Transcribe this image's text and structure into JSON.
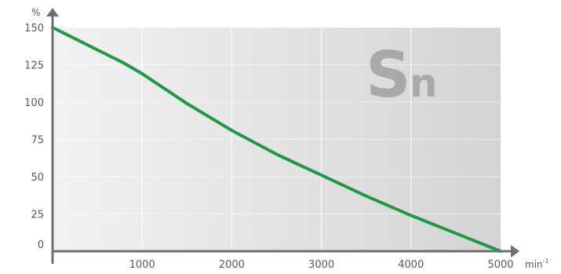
{
  "chart_data": {
    "type": "line",
    "title": "",
    "xlabel": "min",
    "xlabel_superscript": "-1",
    "ylabel": "%",
    "xlim": [
      0,
      5000
    ],
    "ylim": [
      0,
      150
    ],
    "x_ticks": [
      1000,
      2000,
      3000,
      4000,
      5000
    ],
    "y_ticks": [
      0,
      25,
      50,
      75,
      100,
      125,
      150
    ],
    "grid": true,
    "legend": "none",
    "watermark": {
      "main": "S",
      "sub": "n"
    },
    "colors": {
      "line": "#1f9a44",
      "axis": "#707070",
      "plot_bg_left": "#f2f2f2",
      "plot_bg_right": "#d4d4d4",
      "grid": "#ffffff",
      "watermark": "#a9a9a9"
    },
    "series": [
      {
        "x": [
          0,
          400,
          800,
          1000,
          1500,
          2000,
          2500,
          3000,
          3500,
          4000,
          4500,
          5000
        ],
        "y": [
          150,
          138,
          126,
          119,
          99,
          81,
          65,
          51,
          37,
          24,
          12,
          0
        ]
      }
    ]
  }
}
